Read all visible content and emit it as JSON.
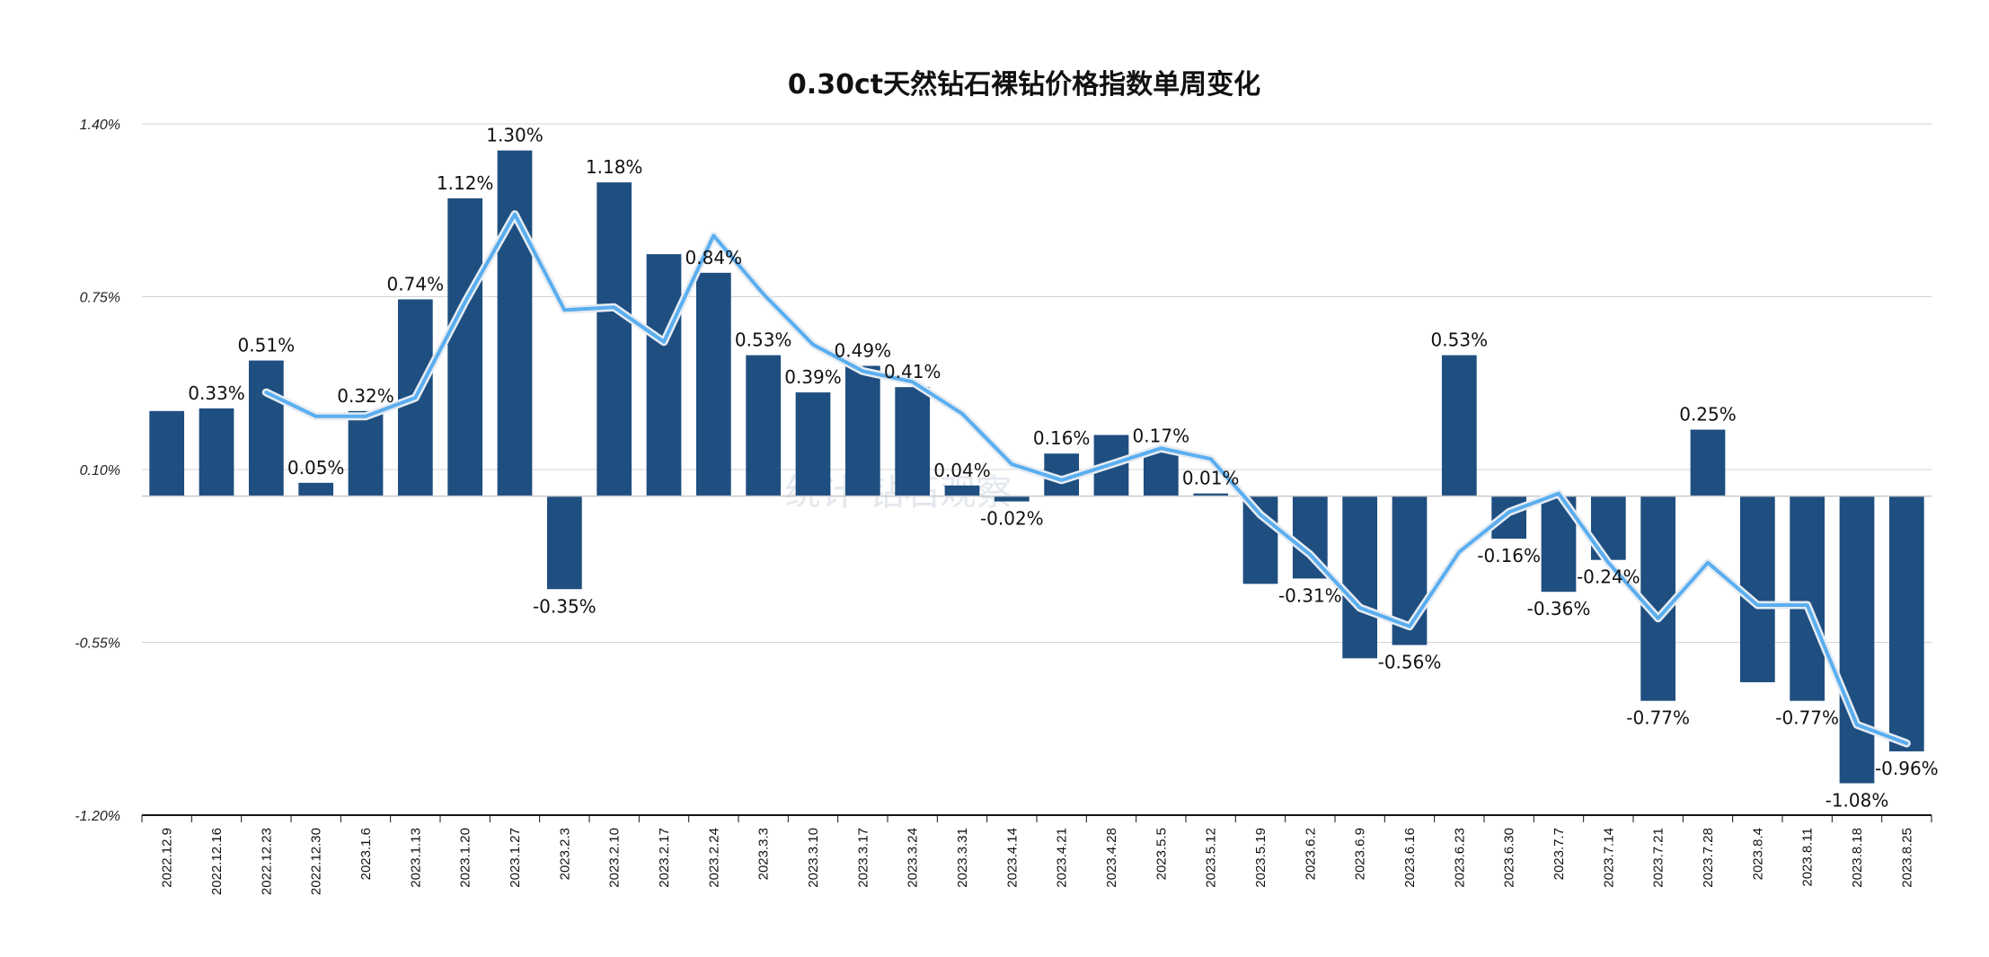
{
  "chart_data": {
    "type": "bar",
    "title": "0.30ct天然钻石裸钻价格指数单周变化",
    "watermark": "统计 钻石观察",
    "xlabel": "",
    "ylabel": "",
    "ylim": [
      -1.2,
      1.4
    ],
    "yticks": [
      "1.40%",
      "0.75%",
      "0.10%",
      "-0.55%",
      "-1.20%"
    ],
    "ytick_values": [
      1.4,
      0.75,
      0.1,
      -0.55,
      -1.2
    ],
    "grid": true,
    "legend": "none",
    "colors": {
      "bar": "#1f4e80",
      "line": "#5aaef0"
    },
    "categories": [
      "2022.12.9",
      "2022.12.16",
      "2022.12.23",
      "2022.12.30",
      "2023.1.6",
      "2023.1.13",
      "2023.1.20",
      "2023.1.27",
      "2023.2.3",
      "2023.2.10",
      "2023.2.17",
      "2023.2.24",
      "2023.3.3",
      "2023.3.10",
      "2023.3.17",
      "2023.3.24",
      "2023.3.31",
      "2023.4.14",
      "2023.4.21",
      "2023.4.28",
      "2023.5.5",
      "2023.5.12",
      "2023.5.19",
      "2023.6.2",
      "2023.6.9",
      "2023.6.16",
      "2023.6.23",
      "2023.6.30",
      "2023.7.7",
      "2023.7.14",
      "2023.7.21",
      "2023.7.28",
      "2023.8.4",
      "2023.8.11",
      "2023.8.18",
      "2023.8.25"
    ],
    "series": [
      {
        "type": "bar",
        "values": [
          0.32,
          0.33,
          0.51,
          0.05,
          0.32,
          0.74,
          1.12,
          1.3,
          -0.35,
          1.18,
          0.91,
          0.84,
          0.53,
          0.39,
          0.49,
          0.41,
          0.04,
          -0.02,
          0.16,
          0.23,
          0.17,
          0.01,
          -0.33,
          -0.31,
          -0.61,
          -0.56,
          0.53,
          -0.16,
          -0.36,
          -0.24,
          -0.77,
          0.25,
          -0.7,
          -0.77,
          -1.08,
          -0.96
        ],
        "labels": [
          "",
          "0.33%",
          "0.51%",
          "0.05%",
          "0.32%",
          "0.74%",
          "1.12%",
          "1.30%",
          "-0.35%",
          "1.18%",
          "",
          "0.84%",
          "0.53%",
          "0.39%",
          "0.49%",
          "0.41%",
          "0.04%",
          "-0.02%",
          "0.16%",
          "",
          "0.17%",
          "0.01%",
          "",
          "-0.31%",
          "",
          "-0.56%",
          "0.53%",
          "-0.16%",
          "-0.36%",
          "-0.24%",
          "-0.77%",
          "0.25%",
          "",
          "-0.77%",
          "-1.08%",
          "-0.96%"
        ]
      },
      {
        "type": "line",
        "values": [
          null,
          null,
          0.39,
          0.3,
          0.3,
          0.37,
          0.73,
          1.06,
          0.7,
          0.71,
          0.58,
          0.98,
          0.76,
          0.57,
          0.47,
          0.43,
          0.31,
          0.12,
          0.06,
          0.12,
          0.18,
          0.14,
          -0.07,
          -0.22,
          -0.42,
          -0.49,
          -0.21,
          -0.06,
          0.01,
          -0.25,
          -0.46,
          -0.25,
          -0.41,
          -0.41,
          -0.86,
          -0.93
        ]
      }
    ]
  }
}
